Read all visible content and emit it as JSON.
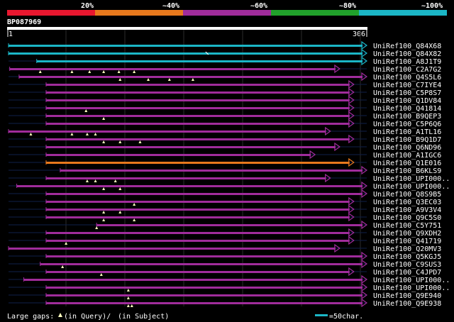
{
  "scale": {
    "labels": [
      "20%",
      "~40%",
      "~60%",
      "~80%",
      "~100%"
    ],
    "colors": [
      "#e8172f",
      "#e8791d",
      "#a02c9b",
      "#21a12b",
      "#1bb6c6"
    ]
  },
  "query": {
    "id": "BP087969",
    "start_label": "1",
    "end_label": "306",
    "length": 306
  },
  "hits": [
    {
      "name": "UniRef100_Q84X68",
      "color": "#1bb6c6",
      "q_start": 1,
      "q_end": 306,
      "gaps_query": [],
      "gaps_subject": [],
      "arrow": true
    },
    {
      "name": "UniRef100_Q84X82",
      "color": "#1bb6c6",
      "q_start": 1,
      "q_end": 306,
      "gaps_query": [],
      "gaps_subject": [
        170
      ],
      "arrow": true
    },
    {
      "name": "UniRef100_A8J1T9",
      "color": "#1bb6c6",
      "q_start": 25,
      "q_end": 306,
      "gaps_query": [],
      "gaps_subject": [],
      "arrow": true
    },
    {
      "name": "UniRef100_C2A7G2",
      "color": "#a02c9b",
      "q_start": 2,
      "q_end": 283,
      "gaps_query": [
        28,
        55,
        70,
        82,
        95,
        108
      ],
      "gaps_subject": [],
      "arrow": true
    },
    {
      "name": "UniRef100_Q4S5L6",
      "color": "#a02c9b",
      "q_start": 10,
      "q_end": 306,
      "gaps_query": [
        96,
        120,
        138,
        158
      ],
      "gaps_subject": [],
      "arrow": true
    },
    {
      "name": "UniRef100_C7IYE4",
      "color": "#a02c9b",
      "q_start": 33,
      "q_end": 295,
      "gaps_query": [],
      "gaps_subject": [],
      "arrow": true
    },
    {
      "name": "UniRef100_C5P8S7",
      "color": "#a02c9b",
      "q_start": 33,
      "q_end": 295,
      "gaps_query": [],
      "gaps_subject": [],
      "arrow": true
    },
    {
      "name": "UniRef100_Q1DV84",
      "color": "#a02c9b",
      "q_start": 33,
      "q_end": 295,
      "gaps_query": [],
      "gaps_subject": [],
      "arrow": true
    },
    {
      "name": "UniRef100_Q41814",
      "color": "#a02c9b",
      "q_start": 33,
      "q_end": 295,
      "gaps_query": [
        67
      ],
      "gaps_subject": [],
      "arrow": true
    },
    {
      "name": "UniRef100_B9QEP3",
      "color": "#a02c9b",
      "q_start": 33,
      "q_end": 295,
      "gaps_query": [
        82
      ],
      "gaps_subject": [],
      "arrow": true
    },
    {
      "name": "UniRef100_C5P6Q6",
      "color": "#a02c9b",
      "q_start": 33,
      "q_end": 295,
      "gaps_query": [],
      "gaps_subject": [],
      "arrow": true
    },
    {
      "name": "UniRef100_A1TL16",
      "color": "#a02c9b",
      "q_start": 1,
      "q_end": 275,
      "gaps_query": [
        20,
        55,
        68,
        75
      ],
      "gaps_subject": [],
      "arrow": true
    },
    {
      "name": "UniRef100_B9Q1D7",
      "color": "#a02c9b",
      "q_start": 33,
      "q_end": 295,
      "gaps_query": [
        82,
        96,
        113
      ],
      "gaps_subject": [],
      "arrow": true
    },
    {
      "name": "UniRef100_Q6ND96",
      "color": "#a02c9b",
      "q_start": 33,
      "q_end": 283,
      "gaps_query": [],
      "gaps_subject": [],
      "arrow": true
    },
    {
      "name": "UniRef100_A1IGC6",
      "color": "#a02c9b",
      "q_start": 33,
      "q_end": 262,
      "gaps_query": [],
      "gaps_subject": [],
      "arrow": true
    },
    {
      "name": "UniRef100_Q1E016",
      "color": "#e8791d",
      "q_start": 33,
      "q_end": 295,
      "gaps_query": [],
      "gaps_subject": [],
      "arrow": true
    },
    {
      "name": "UniRef100_B6KLS9",
      "color": "#a02c9b",
      "q_start": 45,
      "q_end": 306,
      "gaps_query": [],
      "gaps_subject": [],
      "arrow": true
    },
    {
      "name": "UniRef100_UPI000..",
      "color": "#a02c9b",
      "q_start": 33,
      "q_end": 275,
      "gaps_query": [
        68,
        75,
        92
      ],
      "gaps_subject": [],
      "arrow": true
    },
    {
      "name": "UniRef100_UPI000..",
      "color": "#a02c9b",
      "q_start": 8,
      "q_end": 306,
      "gaps_query": [
        82,
        96
      ],
      "gaps_subject": [],
      "arrow": true
    },
    {
      "name": "UniRef100_Q8S9B5",
      "color": "#a02c9b",
      "q_start": 33,
      "q_end": 306,
      "gaps_query": [],
      "gaps_subject": [],
      "arrow": true
    },
    {
      "name": "UniRef100_Q3EC03",
      "color": "#a02c9b",
      "q_start": 33,
      "q_end": 295,
      "gaps_query": [
        108
      ],
      "gaps_subject": [],
      "arrow": true
    },
    {
      "name": "UniRef100_A9V3V4",
      "color": "#a02c9b",
      "q_start": 33,
      "q_end": 295,
      "gaps_query": [
        82,
        96
      ],
      "gaps_subject": [],
      "arrow": true
    },
    {
      "name": "UniRef100_Q9C5S0",
      "color": "#a02c9b",
      "q_start": 33,
      "q_end": 295,
      "gaps_query": [
        82,
        108
      ],
      "gaps_subject": [],
      "arrow": true
    },
    {
      "name": "UniRef100_C5Y751",
      "color": "#a02c9b",
      "q_start": 76,
      "q_end": 306,
      "gaps_query": [
        76
      ],
      "gaps_subject": [],
      "arrow": true
    },
    {
      "name": "UniRef100_Q9XDH2",
      "color": "#a02c9b",
      "q_start": 33,
      "q_end": 295,
      "gaps_query": [],
      "gaps_subject": [],
      "arrow": true
    },
    {
      "name": "UniRef100_Q41719",
      "color": "#a02c9b",
      "q_start": 33,
      "q_end": 295,
      "gaps_query": [
        50
      ],
      "gaps_subject": [],
      "arrow": true
    },
    {
      "name": "UniRef100_Q20MV3",
      "color": "#a02c9b",
      "q_start": 1,
      "q_end": 283,
      "gaps_query": [],
      "gaps_subject": [],
      "arrow": true
    },
    {
      "name": "UniRef100_Q5KGJ5",
      "color": "#a02c9b",
      "q_start": 33,
      "q_end": 306,
      "gaps_query": [],
      "gaps_subject": [],
      "arrow": true
    },
    {
      "name": "UniRef100_C9SUS3",
      "color": "#a02c9b",
      "q_start": 28,
      "q_end": 306,
      "gaps_query": [
        47
      ],
      "gaps_subject": [],
      "arrow": true
    },
    {
      "name": "UniRef100_C4JPD7",
      "color": "#a02c9b",
      "q_start": 33,
      "q_end": 295,
      "gaps_query": [
        80
      ],
      "gaps_subject": [],
      "arrow": true
    },
    {
      "name": "UniRef100_UPI000..",
      "color": "#a02c9b",
      "q_start": 14,
      "q_end": 306,
      "gaps_query": [],
      "gaps_subject": [],
      "arrow": true
    },
    {
      "name": "UniRef100_UPI000..",
      "color": "#a02c9b",
      "q_start": 33,
      "q_end": 306,
      "gaps_query": [
        103
      ],
      "gaps_subject": [],
      "arrow": true
    },
    {
      "name": "UniRef100_Q9E940",
      "color": "#a02c9b",
      "q_start": 33,
      "q_end": 306,
      "gaps_query": [
        103
      ],
      "gaps_subject": [],
      "arrow": true
    },
    {
      "name": "UniRef100_Q9E938",
      "color": "#a02c9b",
      "q_start": 33,
      "q_end": 306,
      "gaps_query": [
        103,
        106
      ],
      "gaps_subject": [],
      "arrow": true
    }
  ],
  "legend": {
    "gaps_prefix": "Large gaps: ",
    "query_label": "(in Query)/",
    "subject_label": "(in Subject)",
    "scale_label": "=50char.",
    "scale_color": "#1bb6c6",
    "scale_chars": 50
  }
}
